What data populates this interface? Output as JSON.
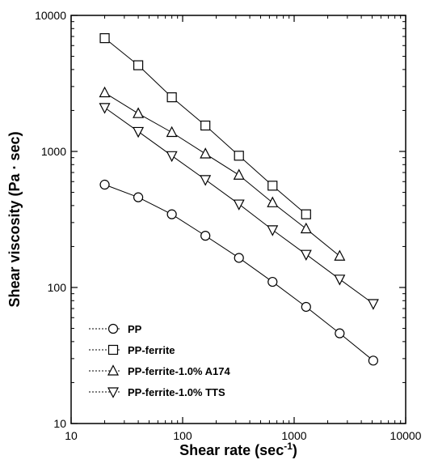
{
  "chart_data": {
    "type": "scatter",
    "title": "",
    "xlabel": "Shear rate (sec",
    "xlabel_sup": "-1",
    "xlabel_close": ")",
    "ylabel": "Shear viscosity (Pa · sec)",
    "xscale": "log",
    "yscale": "log",
    "xlim": [
      10,
      10000
    ],
    "ylim": [
      10,
      10000
    ],
    "xticks": [
      "10",
      "100",
      "1000",
      "10000"
    ],
    "yticks": [
      "10",
      "100",
      "1000",
      "10000"
    ],
    "grid": false,
    "legend_position": "bottom-left",
    "series": [
      {
        "name": "PP",
        "marker": "circle",
        "x": [
          20,
          40,
          80,
          160,
          320,
          640,
          1280,
          2560,
          5120
        ],
        "y": [
          570,
          460,
          345,
          240,
          165,
          110,
          72,
          46,
          29
        ]
      },
      {
        "name": "PP-ferrite",
        "marker": "square",
        "x": [
          20,
          40,
          80,
          160,
          320,
          640,
          1280
        ],
        "y": [
          6800,
          4300,
          2500,
          1550,
          930,
          560,
          345
        ]
      },
      {
        "name": "PP-ferrite-1.0% A174",
        "marker": "triangle-up",
        "x": [
          20,
          40,
          80,
          160,
          320,
          640,
          1280,
          2560
        ],
        "y": [
          2700,
          1900,
          1380,
          960,
          670,
          420,
          270,
          170
        ]
      },
      {
        "name": "PP-ferrite-1.0% TTS",
        "marker": "triangle-down",
        "x": [
          20,
          40,
          80,
          160,
          320,
          640,
          1280,
          2560,
          5120
        ],
        "y": [
          2100,
          1400,
          930,
          620,
          410,
          265,
          175,
          115,
          76
        ]
      }
    ]
  }
}
